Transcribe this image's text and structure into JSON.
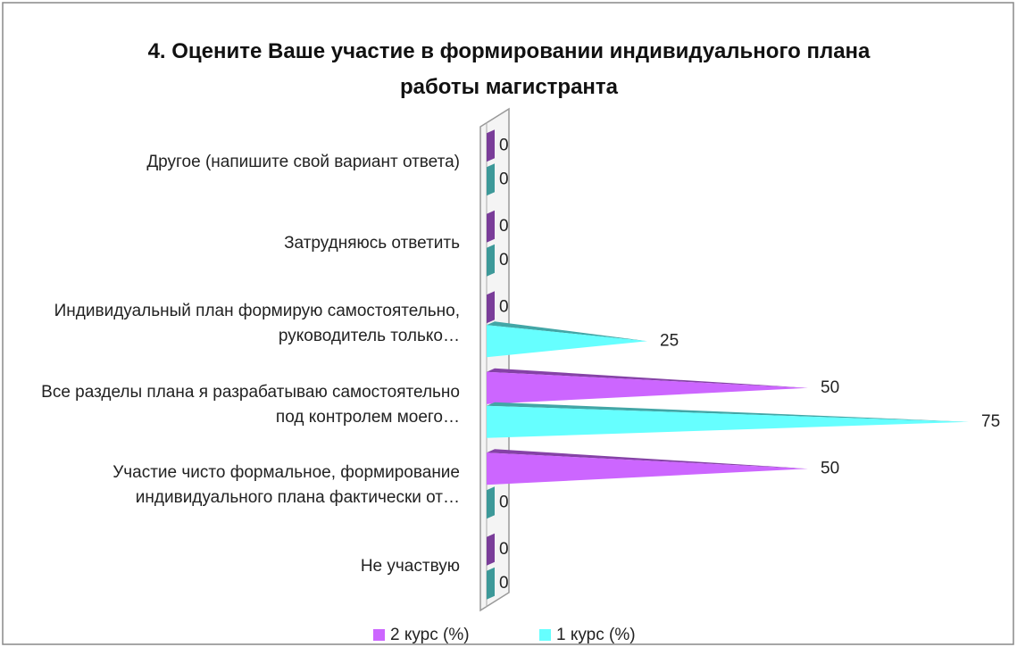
{
  "chart_data": {
    "type": "cone-bar",
    "title": "4. Оцените Ваше участие в формировании индивидуального плана работы магистранта",
    "categories": [
      "Другое (напишите свой вариант ответа)",
      "Затрудняюсь ответить",
      "Индивидуальный план формирую самостоятельно, руководитель только…",
      "Все разделы плана я разрабатываю самостоятельно под контролем моего…",
      "Участие чисто формальное, формирование индивидуального плана фактически от…",
      "Не участвую"
    ],
    "series": [
      {
        "name": "2 курс (%)",
        "color": "#cc66ff",
        "values": [
          0,
          0,
          0,
          50,
          50,
          0
        ]
      },
      {
        "name": "1 курс (%)",
        "color": "#66ffff",
        "values": [
          0,
          0,
          25,
          75,
          0,
          0
        ]
      }
    ],
    "legend": "bottom"
  }
}
